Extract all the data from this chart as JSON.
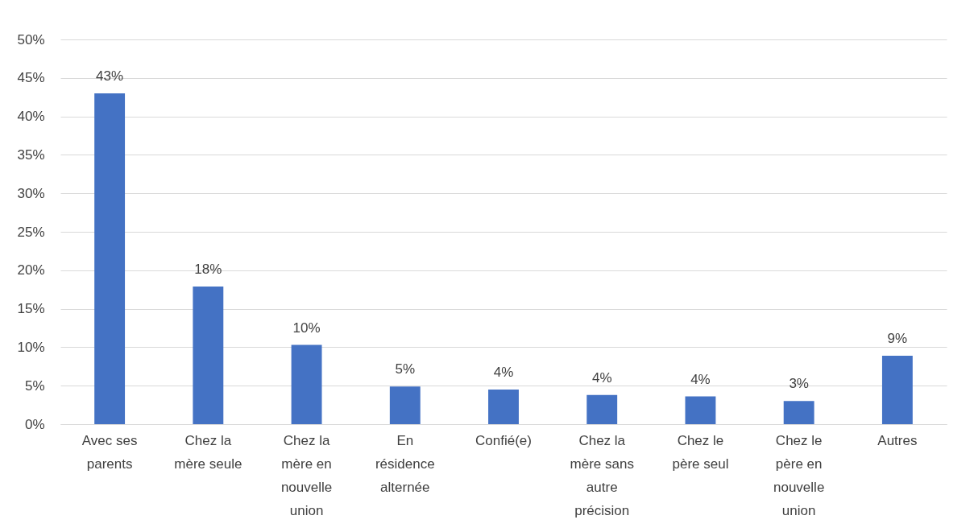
{
  "chart_data": {
    "type": "bar",
    "categories": [
      "Avec ses parents",
      "Chez la mère seule",
      "Chez la mère en nouvelle union",
      "En résidence alternée",
      "Confié(e)",
      "Chez la mère sans autre précision",
      "Chez le père seul",
      "Chez le père en nouvelle union",
      "Autres"
    ],
    "values": [
      43,
      17.9,
      10.3,
      4.9,
      4.5,
      3.8,
      3.6,
      3.0,
      8.9
    ],
    "value_labels": [
      "43%",
      "18%",
      "10%",
      "5%",
      "4%",
      "4%",
      "4%",
      "3%",
      "9%"
    ],
    "color": "#4472c4",
    "ylim": [
      0,
      50
    ],
    "yticks": [
      {
        "value": 0,
        "label": "0%"
      },
      {
        "value": 5,
        "label": "5%"
      },
      {
        "value": 10,
        "label": "10%"
      },
      {
        "value": 15,
        "label": "15%"
      },
      {
        "value": 20,
        "label": "20%"
      },
      {
        "value": 25,
        "label": "25%"
      },
      {
        "value": 30,
        "label": "30%"
      },
      {
        "value": 35,
        "label": "35%"
      },
      {
        "value": 40,
        "label": "40%"
      },
      {
        "value": 45,
        "label": "45%"
      },
      {
        "value": 50,
        "label": "50%"
      }
    ],
    "grid": "y"
  }
}
